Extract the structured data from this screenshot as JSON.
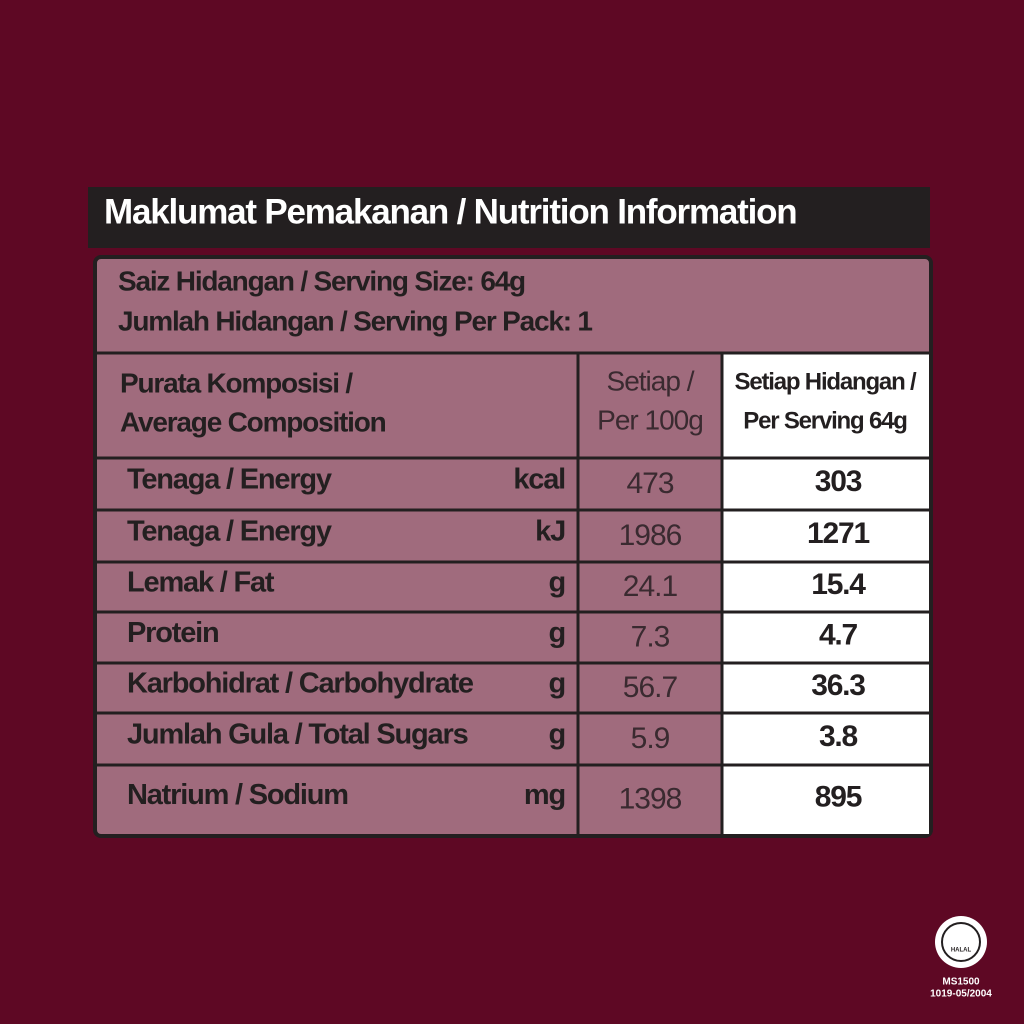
{
  "title": "Maklumat Pemakanan / Nutrition Information",
  "serving": {
    "size": "Saiz Hidangan / Serving Size: 64g",
    "per_pack": "Jumlah Hidangan / Serving Per Pack: 1"
  },
  "table": {
    "header": {
      "composition": [
        "Purata Komposisi /",
        "Average Composition"
      ],
      "per_100g": [
        "Setiap /",
        "Per 100g"
      ],
      "per_serving": [
        "Setiap Hidangan /",
        "Per Serving 64g"
      ]
    },
    "rows": [
      [
        "Tenaga / Energy",
        "kcal",
        473,
        303
      ],
      [
        "Tenaga / Energy",
        "kJ",
        1986,
        1271
      ],
      [
        "Lemak / Fat",
        "g",
        24.1,
        15.4
      ],
      [
        "Protein",
        "g",
        7.3,
        4.7
      ],
      [
        "Karbohidrat / Carbohydrate",
        "g",
        56.7,
        36.3
      ],
      [
        "Jumlah Gula / Total Sugars",
        "g",
        5.9,
        3.8
      ],
      [
        "Natrium / Sodium",
        "mg",
        1398,
        895
      ]
    ]
  },
  "halal": {
    "logo": "HALAL",
    "standard": "MS1500",
    "certificate": "1019-05/2004"
  }
}
